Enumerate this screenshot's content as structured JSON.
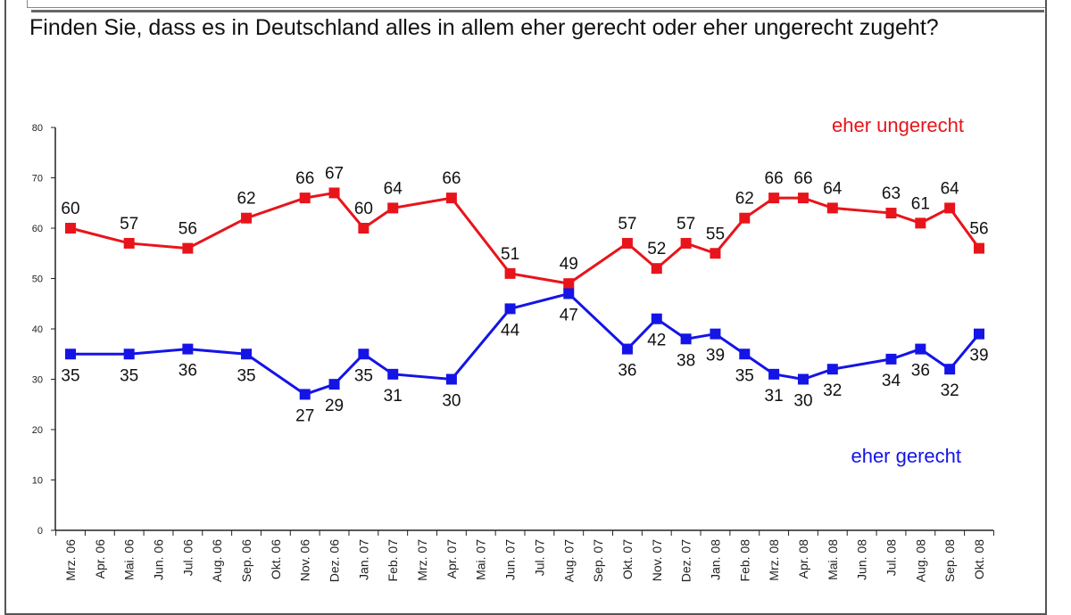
{
  "title": "Finden Sie, dass es in Deutschland alles in allem eher gerecht oder eher ungerecht zugeht?",
  "chart_data": {
    "type": "line",
    "title": "Finden Sie, dass es in Deutschland alles in allem eher gerecht oder eher ungerecht zugeht?",
    "ylim": [
      0,
      80
    ],
    "yticks": [
      0,
      10,
      20,
      30,
      40,
      50,
      60,
      70,
      80
    ],
    "grid": false,
    "categories": [
      "Mrz. 06",
      "Apr. 06",
      "Mai. 06",
      "Jun. 06",
      "Jul. 06",
      "Aug. 06",
      "Sep. 06",
      "Okt. 06",
      "Nov. 06",
      "Dez. 06",
      "Jan. 07",
      "Feb. 07",
      "Mrz. 07",
      "Apr. 07",
      "Mai. 07",
      "Jun. 07",
      "Jul. 07",
      "Aug. 07",
      "Sep. 07",
      "Okt. 07",
      "Nov. 07",
      "Dez. 07",
      "Jan. 08",
      "Feb. 08",
      "Mrz. 08",
      "Apr. 08",
      "Mai. 08",
      "Jun. 08",
      "Jul. 08",
      "Aug. 08",
      "Sep. 08",
      "Okt. 08"
    ],
    "x": [
      "Mrz. 06",
      "Mai. 06",
      "Jul. 06",
      "Sep. 06",
      "Nov. 06",
      "Dez. 06",
      "Jan. 07",
      "Feb. 07",
      "Apr. 07",
      "Jun. 07",
      "Aug. 07",
      "Okt. 07",
      "Nov. 07",
      "Dez. 07",
      "Jan. 08",
      "Feb. 08",
      "Mrz. 08",
      "Apr. 08",
      "Mai. 08",
      "Jul. 08",
      "Aug. 08",
      "Sep. 08",
      "Okt. 08"
    ],
    "series": [
      {
        "name": "eher ungerecht",
        "color": "#e8141b",
        "label_position": "above",
        "values": [
          60,
          57,
          56,
          62,
          66,
          67,
          60,
          64,
          66,
          51,
          49,
          57,
          52,
          57,
          55,
          62,
          66,
          66,
          64,
          63,
          61,
          64,
          56
        ]
      },
      {
        "name": "eher gerecht",
        "color": "#1414e6",
        "label_position": "below",
        "values": [
          35,
          35,
          36,
          35,
          27,
          29,
          35,
          31,
          30,
          44,
          47,
          36,
          42,
          38,
          39,
          35,
          31,
          30,
          32,
          34,
          36,
          32,
          39
        ]
      }
    ]
  }
}
